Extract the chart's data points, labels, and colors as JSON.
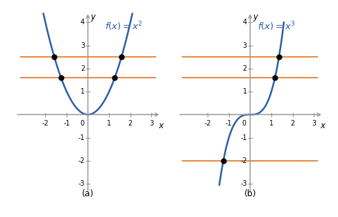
{
  "xlim": [
    -3.5,
    3.5
  ],
  "ylim": [
    -3.5,
    4.5
  ],
  "xticks": [
    -2,
    -1,
    1,
    2,
    3
  ],
  "yticks": [
    -3,
    -2,
    -1,
    1,
    2,
    3,
    4
  ],
  "curve_color": "#2b5fa5",
  "curve_linewidth": 1.8,
  "orange_color": "#e8883a",
  "orange_linewidth": 1.4,
  "dot_color": "black",
  "dot_size": 5,
  "axis_color": "#999999",
  "title_color": "#2b5fa5",
  "title_fontsize": 9.5,
  "label_fontsize": 9,
  "tick_fontsize": 7,
  "label_a": "(a)",
  "label_b": "(b)",
  "func_label_a": "$f(x) = x^2$",
  "func_label_b": "$f(x) = x^3$",
  "hlines_a": [
    2.5,
    1.6
  ],
  "hlines_b": [
    2.5,
    1.6,
    -2.0
  ],
  "background_color": "#ffffff",
  "hline_xmin": -3.2,
  "hline_xmax": 3.2
}
